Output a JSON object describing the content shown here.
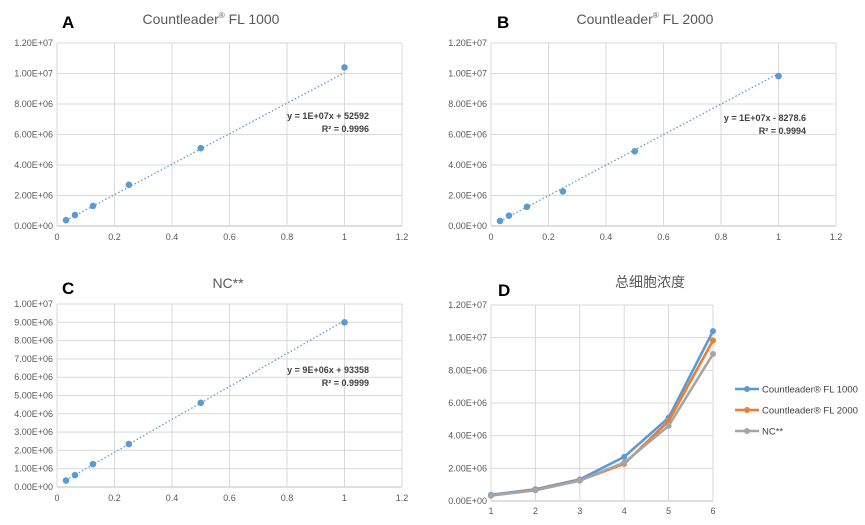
{
  "chart_data": [
    {
      "panel": "A",
      "type": "scatter",
      "title": "Countleader",
      "title_sup": "®",
      "title_suffix": " FL 1000",
      "x": [
        0.03125,
        0.0625,
        0.125,
        0.25,
        0.5,
        1.0
      ],
      "y": [
        380000,
        720000,
        1320000,
        2700000,
        5100000,
        10400000
      ],
      "trendline": {
        "slope": 10000000,
        "intercept": 52592,
        "style": "dotted"
      },
      "equation": "y = 1E+07x + 52592",
      "r2": "R² = 0.9996",
      "xlim": [
        0,
        1.2
      ],
      "ylim": [
        0,
        12000000
      ],
      "xticks": [
        "0",
        "0.2",
        "0.4",
        "0.6",
        "0.8",
        "1",
        "1.2"
      ],
      "yticks": [
        "0.00E+00",
        "2.00E+06",
        "4.00E+06",
        "6.00E+06",
        "8.00E+06",
        "1.00E+07",
        "1.20E+07"
      ],
      "grid": true,
      "color": "#5b9bd5"
    },
    {
      "panel": "B",
      "type": "scatter",
      "title": "Countleader",
      "title_sup": "®",
      "title_suffix": " FL 2000",
      "x": [
        0.03125,
        0.0625,
        0.125,
        0.25,
        0.5,
        1.0
      ],
      "y": [
        330000,
        680000,
        1260000,
        2270000,
        4900000,
        9830000
      ],
      "trendline": {
        "slope": 10000000,
        "intercept": -8278.6,
        "style": "dotted"
      },
      "equation": "y = 1E+07x - 8278.6",
      "r2": "R² = 0.9994",
      "xlim": [
        0,
        1.2
      ],
      "ylim": [
        0,
        12000000
      ],
      "xticks": [
        "0",
        "0.2",
        "0.4",
        "0.6",
        "0.8",
        "1",
        "1.2"
      ],
      "yticks": [
        "0.00E+00",
        "2.00E+06",
        "4.00E+06",
        "6.00E+06",
        "8.00E+06",
        "1.00E+07",
        "1.20E+07"
      ],
      "grid": true,
      "color": "#5b9bd5"
    },
    {
      "panel": "C",
      "type": "scatter",
      "title": "NC**",
      "title_sup": "",
      "title_suffix": "",
      "x": [
        0.03125,
        0.0625,
        0.125,
        0.25,
        0.5,
        1.0
      ],
      "y": [
        350000,
        650000,
        1250000,
        2350000,
        4600000,
        9000000
      ],
      "trendline": {
        "slope": 9000000,
        "intercept": 93358,
        "style": "dotted"
      },
      "equation": "y = 9E+06x + 93358",
      "r2": "R² = 0.9999",
      "xlim": [
        0,
        1.2
      ],
      "ylim": [
        0,
        10000000
      ],
      "xticks": [
        "0",
        "0.2",
        "0.4",
        "0.6",
        "0.8",
        "1",
        "1.2"
      ],
      "yticks": [
        "0.00E+00",
        "1.00E+06",
        "2.00E+06",
        "3.00E+06",
        "4.00E+06",
        "5.00E+06",
        "6.00E+06",
        "7.00E+06",
        "8.00E+06",
        "9.00E+06",
        "1.00E+07"
      ],
      "grid": true,
      "color": "#5b9bd5"
    },
    {
      "panel": "D",
      "type": "line",
      "title": "总细胞浓度",
      "title_sup": "",
      "title_suffix": "",
      "categories": [
        "1",
        "2",
        "3",
        "4",
        "5",
        "6"
      ],
      "ylim": [
        0,
        12000000
      ],
      "yticks": [
        "0.00E+00",
        "2.00E+06",
        "4.00E+06",
        "6.00E+06",
        "8.00E+06",
        "1.00E+07",
        "1.20E+07"
      ],
      "grid": true,
      "legend_position": "right",
      "series": [
        {
          "name": "Countleader® FL 1000",
          "color": "#5b9bd5",
          "values": [
            380000,
            720000,
            1320000,
            2700000,
            5100000,
            10400000
          ]
        },
        {
          "name": "Countleader® FL 2000",
          "color": "#ed7d31",
          "values": [
            330000,
            680000,
            1260000,
            2270000,
            4900000,
            9830000
          ]
        },
        {
          "name": "NC**",
          "color": "#a5a5a5",
          "values": [
            350000,
            650000,
            1250000,
            2350000,
            4600000,
            9000000
          ]
        }
      ]
    }
  ]
}
